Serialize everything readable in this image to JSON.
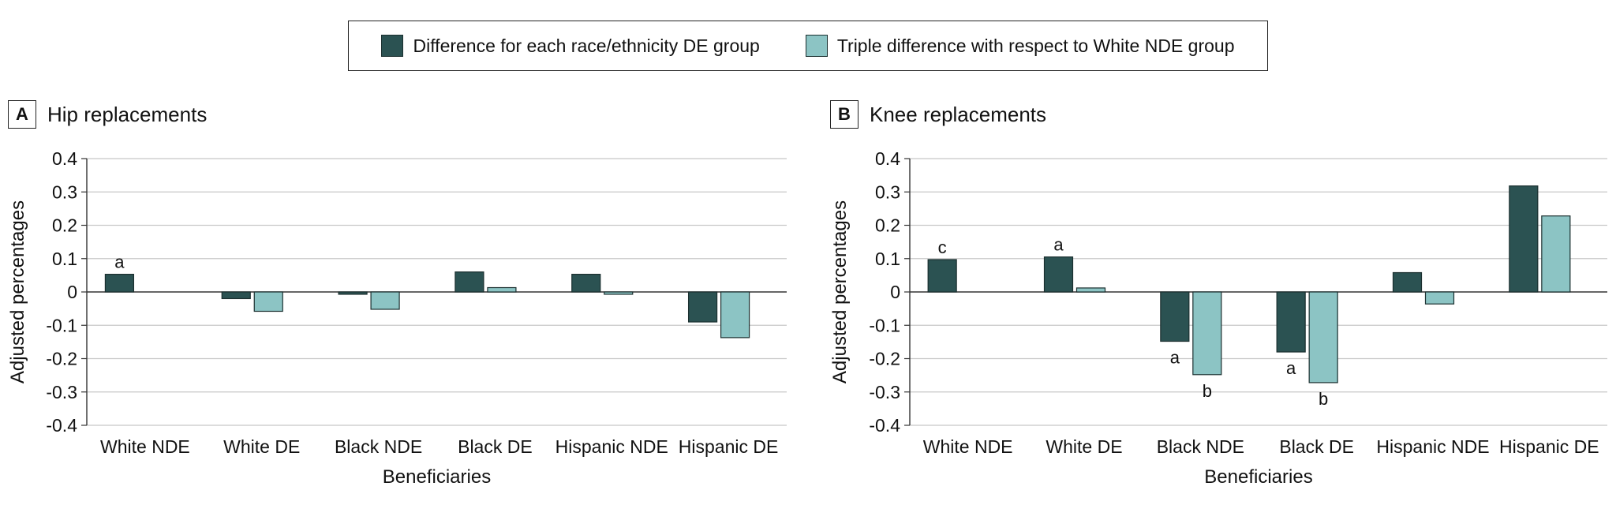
{
  "legend": {
    "series1": "Difference for each race/ethnicity DE group",
    "series2": "Triple difference with respect to White NDE group"
  },
  "colors": {
    "series1": "#2b5252",
    "series2": "#8cc4c4",
    "grid": "#c8c8c8",
    "axis": "#333333"
  },
  "panels": {
    "A": {
      "letter": "A",
      "title": "Hip replacements"
    },
    "B": {
      "letter": "B",
      "title": "Knee replacements"
    }
  },
  "chart_data": [
    {
      "type": "bar",
      "panel": "A",
      "title": "Hip replacements",
      "xlabel": "Beneficiaries",
      "ylabel": "Adjusted percentages",
      "ylim": [
        -0.4,
        0.4
      ],
      "yticks": [
        0.4,
        0.3,
        0.2,
        0.1,
        0,
        -0.1,
        -0.2,
        -0.3,
        -0.4
      ],
      "ytick_labels": [
        "0.4",
        "0.3",
        "0.2",
        "0.1",
        "0",
        "-0.1",
        "-0.2",
        "-0.3",
        "-0.4"
      ],
      "grid": true,
      "categories": [
        "White NDE",
        "White DE",
        "Black NDE",
        "Black DE",
        "Hispanic NDE",
        "Hispanic DE"
      ],
      "series": [
        {
          "name": "Difference for each race/ethnicity DE group",
          "values": [
            0.053,
            -0.02,
            -0.007,
            0.06,
            0.053,
            -0.09
          ],
          "annotations": [
            "a",
            "",
            "",
            "",
            "",
            ""
          ]
        },
        {
          "name": "Triple difference with respect to White NDE group",
          "values": [
            null,
            -0.058,
            -0.052,
            0.013,
            -0.007,
            -0.137
          ],
          "annotations": [
            "",
            "",
            "",
            "",
            "",
            ""
          ]
        }
      ]
    },
    {
      "type": "bar",
      "panel": "B",
      "title": "Knee replacements",
      "xlabel": "Beneficiaries",
      "ylabel": "Adjusted percentages",
      "ylim": [
        -0.4,
        0.4
      ],
      "yticks": [
        0.4,
        0.3,
        0.2,
        0.1,
        0,
        -0.1,
        -0.2,
        -0.3,
        -0.4
      ],
      "ytick_labels": [
        "0.4",
        "0.3",
        "0.2",
        "0.1",
        "0",
        "-0.1",
        "-0.2",
        "-0.3",
        "-0.4"
      ],
      "grid": true,
      "categories": [
        "White NDE",
        "White DE",
        "Black NDE",
        "Black DE",
        "Hispanic NDE",
        "Hispanic DE"
      ],
      "series": [
        {
          "name": "Difference for each race/ethnicity DE group",
          "values": [
            0.097,
            0.105,
            -0.148,
            -0.18,
            0.058,
            0.318
          ],
          "annotations": [
            "c",
            "a",
            "a",
            "a",
            "",
            ""
          ]
        },
        {
          "name": "Triple difference with respect to White NDE group",
          "values": [
            null,
            0.012,
            -0.248,
            -0.272,
            -0.036,
            0.228
          ],
          "annotations": [
            "",
            "",
            "b",
            "b",
            "",
            ""
          ]
        }
      ]
    }
  ]
}
